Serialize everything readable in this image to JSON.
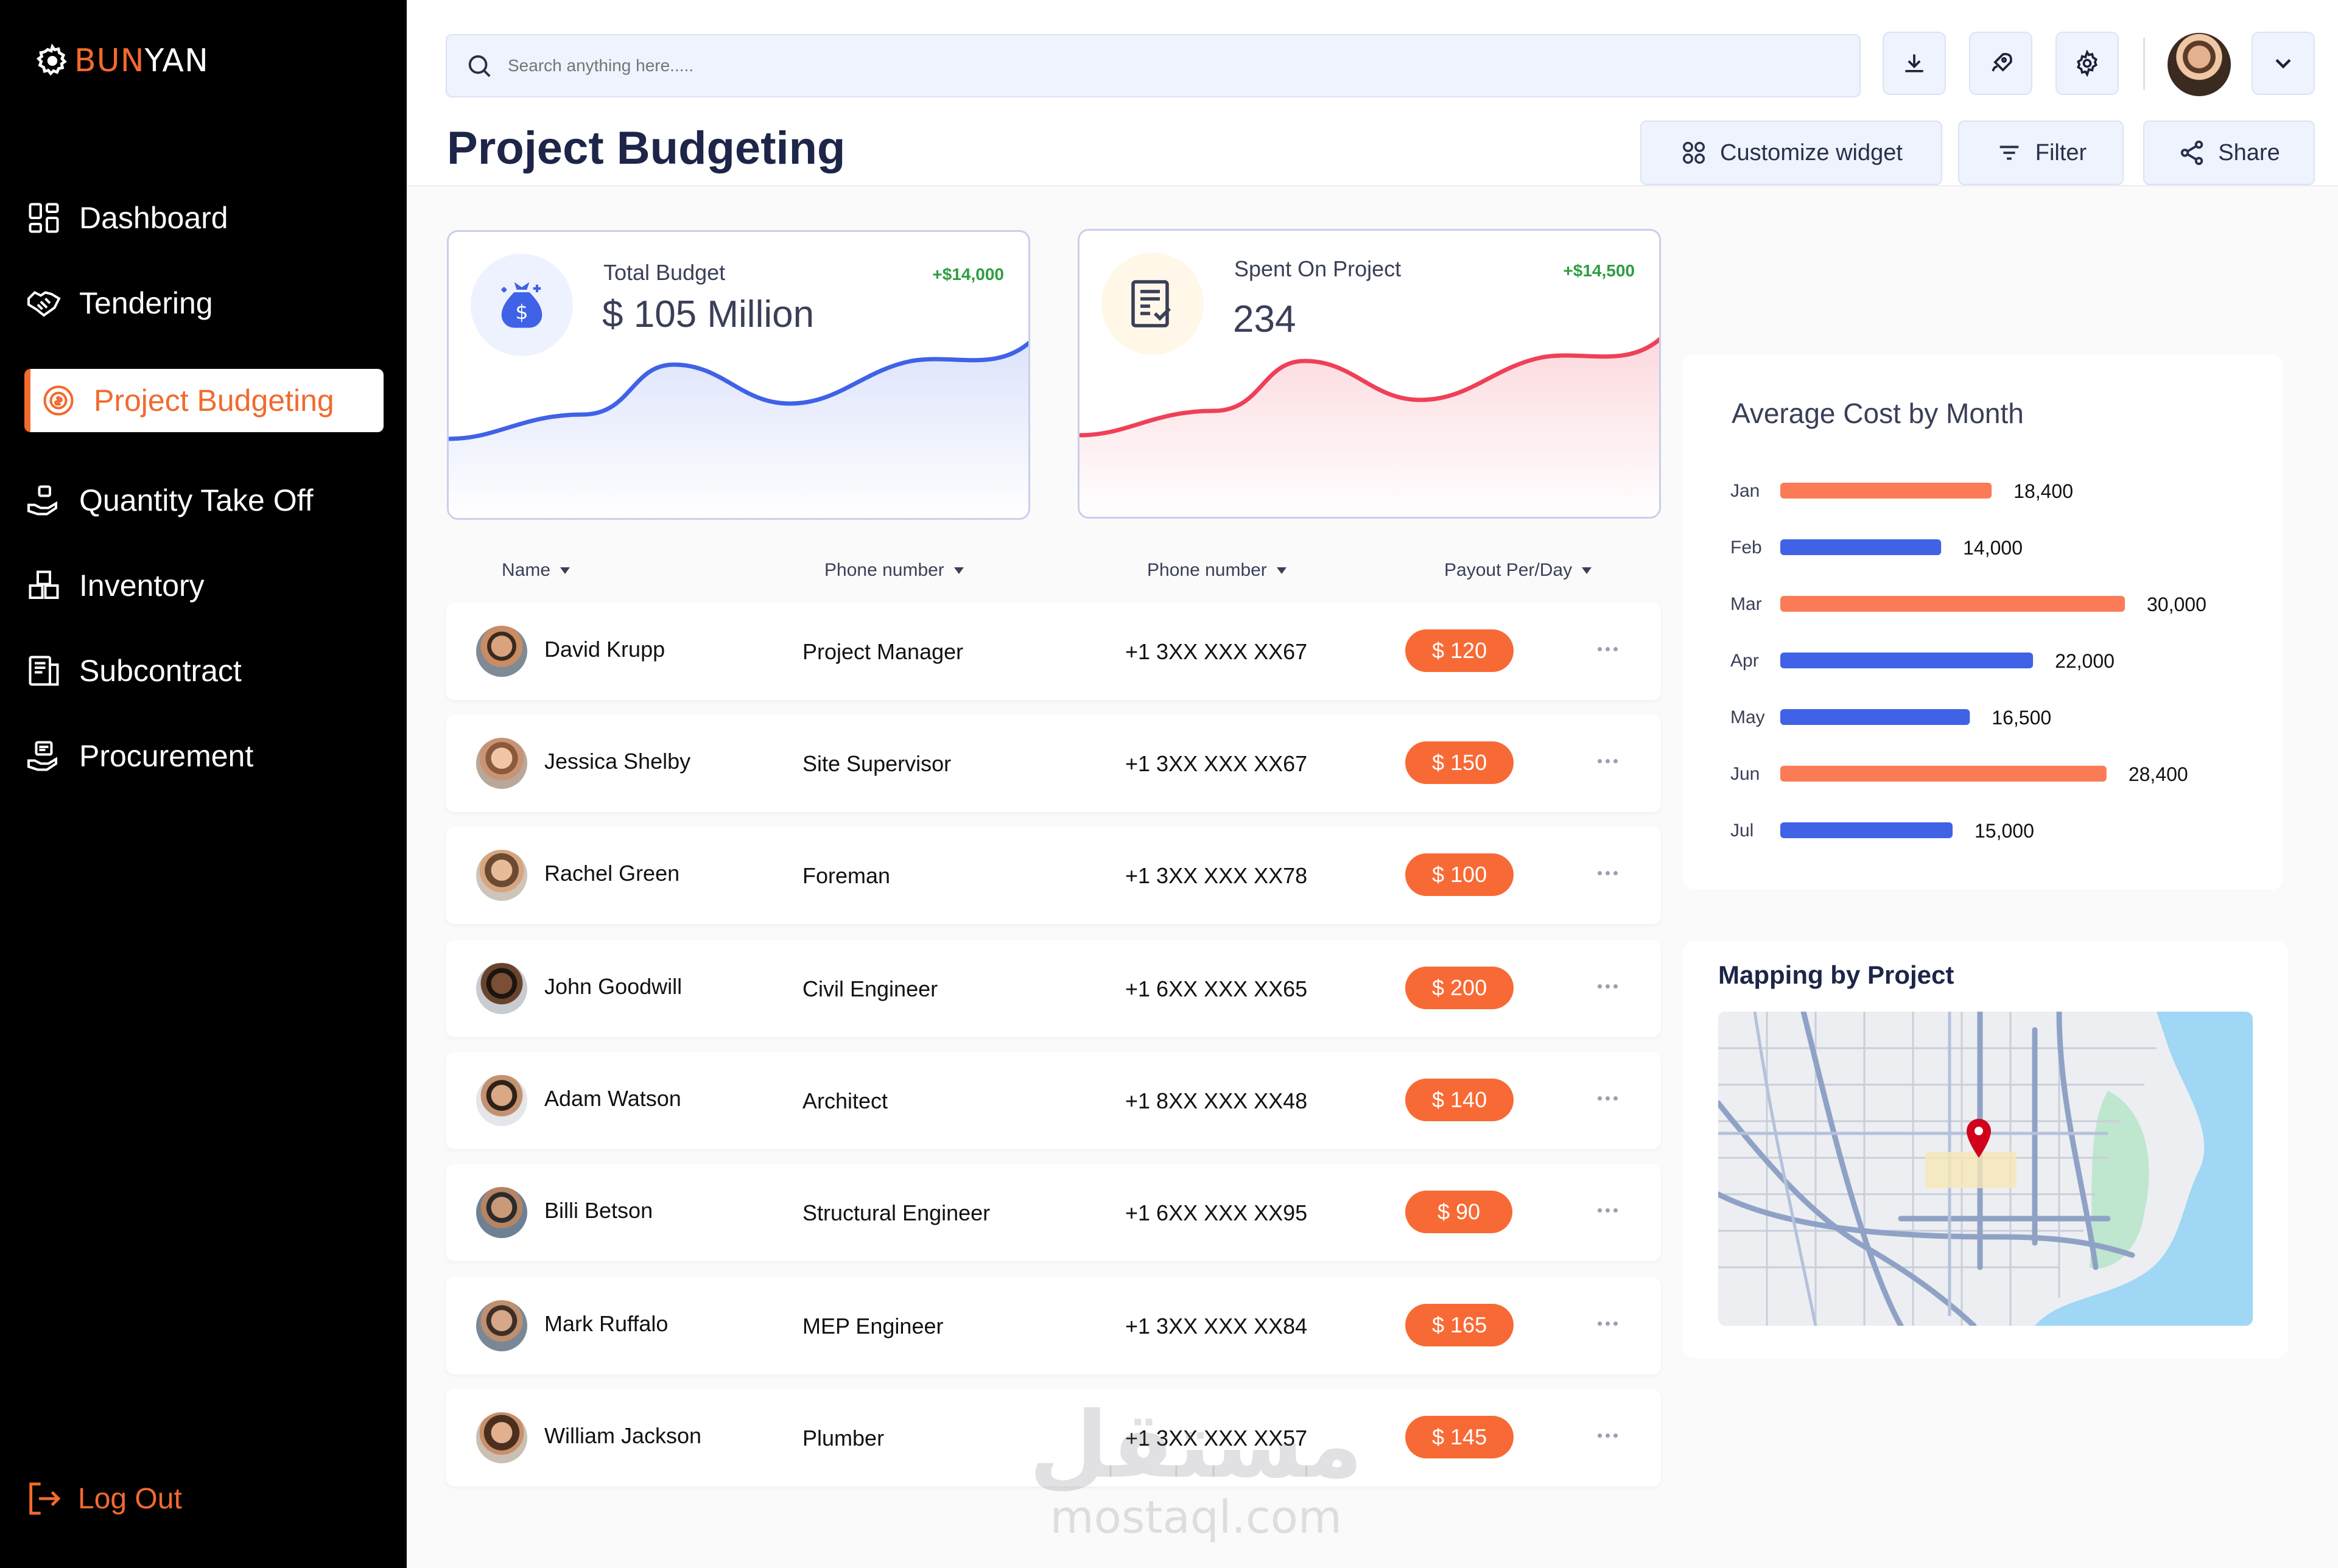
{
  "brand": {
    "name_part1": "BUN",
    "name_part2": "YAN"
  },
  "sidebar": {
    "items": [
      {
        "label": "Dashboard",
        "icon": "grid-icon"
      },
      {
        "label": "Tendering",
        "icon": "handshake-icon"
      },
      {
        "label": "Project Budgeting",
        "icon": "coin-cycle-icon",
        "active": true
      },
      {
        "label": "Quantity Take Off",
        "icon": "hand-box-icon"
      },
      {
        "label": "Inventory",
        "icon": "boxes-icon"
      },
      {
        "label": "Subcontract",
        "icon": "contract-icon"
      },
      {
        "label": "Procurement",
        "icon": "procurement-icon"
      }
    ],
    "logout_label": "Log Out"
  },
  "search": {
    "placeholder": "Search anything here....."
  },
  "page": {
    "title": "Project Budgeting"
  },
  "actions": {
    "customize": "Customize widget",
    "filter": "Filter",
    "share": "Share"
  },
  "cards": {
    "total_budget": {
      "label": "Total Budget",
      "value": "$ 105 Million",
      "delta": "+$14,000",
      "accent": "#3f62e6"
    },
    "spent": {
      "label": "Spent On Project",
      "value": "234",
      "delta": "+$14,500",
      "accent": "#ef4057"
    }
  },
  "table": {
    "headers": [
      "Name",
      "Phone number",
      "Phone number",
      "Payout Per/Day"
    ],
    "rows": [
      {
        "name": "David Krupp",
        "role": "Project Manager",
        "phone": "+1 3XX XXX XX67",
        "payout": "$ 120"
      },
      {
        "name": "Jessica Shelby",
        "role": "Site Supervisor",
        "phone": "+1 3XX XXX XX67",
        "payout": "$ 150"
      },
      {
        "name": "Rachel Green",
        "role": "Foreman",
        "phone": "+1 3XX XXX XX78",
        "payout": "$ 100"
      },
      {
        "name": "John Goodwill",
        "role": "Civil Engineer",
        "phone": "+1 6XX XXX XX65",
        "payout": "$ 200"
      },
      {
        "name": "Adam Watson",
        "role": "Architect",
        "phone": "+1 8XX XXX XX48",
        "payout": "$ 140"
      },
      {
        "name": "Billi Betson",
        "role": "Structural Engineer",
        "phone": "+1 6XX XXX XX95",
        "payout": "$ 90"
      },
      {
        "name": "Mark Ruffalo",
        "role": "MEP Engineer",
        "phone": "+1 3XX XXX XX84",
        "payout": "$ 165"
      },
      {
        "name": "William Jackson",
        "role": "Plumber",
        "phone": "+1 3XX XXX XX57",
        "payout": "$ 145"
      }
    ]
  },
  "chart_data": {
    "type": "bar",
    "title": "Average Cost by Month",
    "categories": [
      "Jan",
      "Feb",
      "Mar",
      "Apr",
      "May",
      "Jun",
      "Jul"
    ],
    "values": [
      18400,
      14000,
      30000,
      22000,
      16500,
      28400,
      15000
    ],
    "value_labels": [
      "18,400",
      "14,000",
      "30,000",
      "22,000",
      "16,500",
      "28,400",
      "15,000"
    ],
    "colors": [
      "#fa7b56",
      "#3f62e6",
      "#fa7b56",
      "#3f62e6",
      "#3f62e6",
      "#fa7b56",
      "#3f62e6"
    ],
    "orientation": "horizontal",
    "xlim": [
      0,
      30000
    ]
  },
  "map": {
    "title": "Mapping by Project",
    "pin_color": "#d0021b"
  },
  "watermark": {
    "arabic": "مستقل",
    "latin": "mostaql.com"
  }
}
